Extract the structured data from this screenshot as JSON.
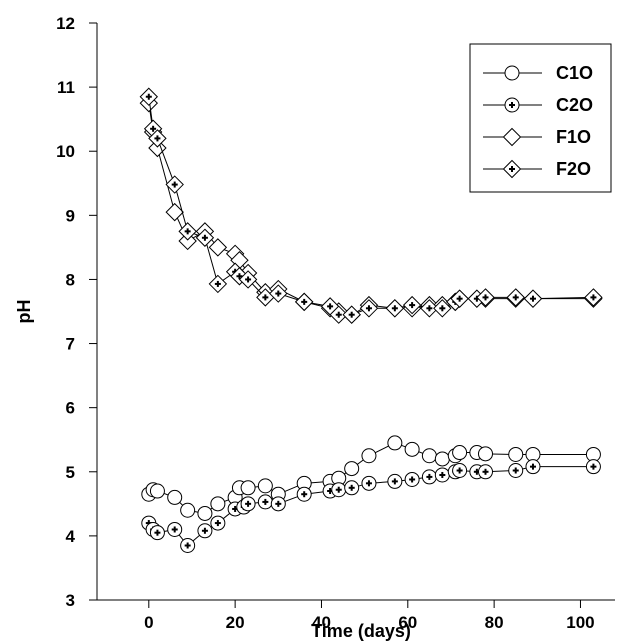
{
  "chart_data": {
    "type": "line",
    "title": "",
    "xlabel": "Time (days)",
    "ylabel": "pH",
    "xlim": [
      -12,
      108
    ],
    "ylim": [
      3,
      12
    ],
    "xticks": [
      0,
      20,
      40,
      60,
      80,
      100
    ],
    "yticks": [
      3,
      4,
      5,
      6,
      7,
      8,
      9,
      10,
      11,
      12
    ],
    "grid": false,
    "legend_position": "top-right",
    "series": [
      {
        "name": "C1O",
        "marker": "circle",
        "x": [
          0,
          1,
          2,
          6,
          9,
          13,
          16,
          20,
          21,
          23,
          27,
          30,
          36,
          42,
          44,
          47,
          51,
          57,
          61,
          65,
          68,
          71,
          72,
          76,
          78,
          85,
          89,
          103
        ],
        "y": [
          4.65,
          4.72,
          4.7,
          4.6,
          4.4,
          4.35,
          4.5,
          4.6,
          4.75,
          4.75,
          4.78,
          4.65,
          4.82,
          4.85,
          4.9,
          5.05,
          5.25,
          5.45,
          5.35,
          5.25,
          5.2,
          5.25,
          5.3,
          5.3,
          5.28,
          5.27,
          5.27,
          5.27
        ]
      },
      {
        "name": "C2O",
        "marker": "circle-plus",
        "x": [
          0,
          1,
          2,
          6,
          9,
          13,
          16,
          20,
          22,
          23,
          27,
          30,
          36,
          42,
          44,
          47,
          51,
          57,
          61,
          65,
          68,
          71,
          72,
          76,
          78,
          85,
          89,
          103
        ],
        "y": [
          4.2,
          4.1,
          4.05,
          4.1,
          3.85,
          4.08,
          4.2,
          4.42,
          4.45,
          4.5,
          4.53,
          4.5,
          4.65,
          4.7,
          4.72,
          4.75,
          4.82,
          4.85,
          4.88,
          4.92,
          4.95,
          5.0,
          5.02,
          5.0,
          5.0,
          5.02,
          5.08,
          5.08
        ]
      },
      {
        "name": "F1O",
        "marker": "diamond",
        "x": [
          0,
          1,
          2,
          6,
          9,
          13,
          16,
          20,
          21,
          23,
          27,
          30,
          36,
          42,
          44,
          47,
          51,
          57,
          61,
          65,
          68,
          71,
          72,
          76,
          78,
          85,
          89,
          103
        ],
        "y": [
          10.75,
          10.3,
          10.05,
          9.05,
          8.6,
          8.75,
          8.5,
          8.4,
          8.3,
          8.1,
          7.8,
          7.85,
          7.65,
          7.55,
          7.5,
          7.45,
          7.6,
          7.55,
          7.55,
          7.6,
          7.6,
          7.65,
          7.7,
          7.7,
          7.7,
          7.7,
          7.7,
          7.7
        ]
      },
      {
        "name": "F2O",
        "marker": "diamond-plus",
        "x": [
          0,
          1,
          2,
          6,
          9,
          13,
          16,
          20,
          21,
          23,
          27,
          30,
          36,
          42,
          44,
          47,
          51,
          57,
          61,
          65,
          68,
          71,
          72,
          76,
          78,
          85,
          89,
          103
        ],
        "y": [
          10.85,
          10.35,
          10.2,
          9.48,
          8.75,
          8.65,
          7.93,
          8.12,
          8.05,
          8.0,
          7.72,
          7.78,
          7.65,
          7.58,
          7.45,
          7.45,
          7.55,
          7.55,
          7.6,
          7.55,
          7.55,
          7.65,
          7.7,
          7.7,
          7.72,
          7.72,
          7.7,
          7.72
        ]
      }
    ]
  }
}
